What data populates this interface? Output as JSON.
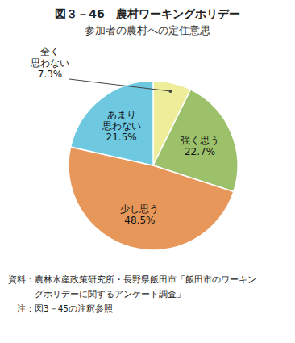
{
  "chart_data": {
    "type": "pie",
    "title": "図３－46　農村ワーキングホリデー",
    "subtitle": "参加者の農村への定住意思",
    "categories": [
      "全く\n思わない",
      "強く思う",
      "少し思う",
      "あまり\n思わない"
    ],
    "values": [
      7.3,
      22.7,
      48.5,
      21.5
    ],
    "value_labels": [
      "7.3%",
      "22.7%",
      "48.5%",
      "21.5%"
    ],
    "colors": [
      "#eeed9a",
      "#9dc16a",
      "#e8975a",
      "#6dc8e0"
    ],
    "data_labels": true,
    "annotations": [
      "資料：農林水産政策研究所・長野県飯田市「飯田市のワーキン",
      "　　　グホリデーに関するアンケート調査」",
      "　注：図3－45の注釈参照"
    ]
  }
}
